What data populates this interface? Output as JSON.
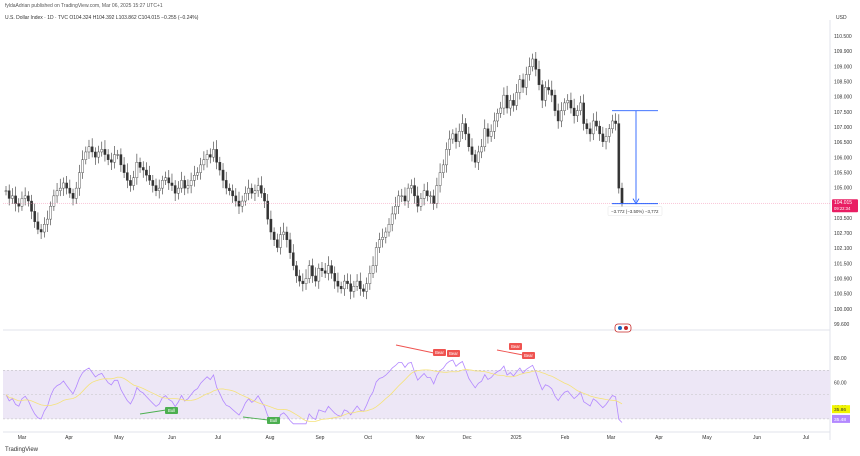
{
  "header": {
    "author_line": "fyldaAdrian published on TradingView.com, Mar 06, 2025 15:27 UTC+1",
    "symbol_line": "U.S. Dollar Index · 1D · TVC   O104.324  H104.392  L103.862  C104.015  −0.255 (−0.24%)",
    "currency": "USD"
  },
  "footer": {
    "brand": "TradingView"
  },
  "colors": {
    "up": "#ffffff",
    "down": "#333333",
    "wick": "#333333",
    "rsi_line": "#b388ff",
    "rsi_ma": "#f5e27a",
    "rsi_band": "#ede7f6",
    "bull": "#4caf50",
    "bear": "#ef5350",
    "measure": "#2962ff",
    "price_badge": "#e91e63",
    "rsi_badge": "#f1f500"
  },
  "chart_data": {
    "type": "candlestick",
    "main": {
      "y_ticks": [
        "110.500",
        "109.900",
        "109.000",
        "108.500",
        "108.000",
        "107.500",
        "107.000",
        "106.500",
        "106.000",
        "105.500",
        "105.000",
        "104.500",
        "103.500",
        "102.700",
        "102.100",
        "101.500",
        "100.900",
        "100.500",
        "100.000",
        "99.600"
      ],
      "last_price": "104.015",
      "countdown": "09:22:34",
      "measure_label": "−3.772 (−3.50%) −3,772",
      "ohlc_closes": [
        104.5,
        104.2,
        104.3,
        104.0,
        103.9,
        104.2,
        104.3,
        104.1,
        103.7,
        103.3,
        103.0,
        102.9,
        103.2,
        103.4,
        103.9,
        104.3,
        104.5,
        104.6,
        104.8,
        104.6,
        104.4,
        104.2,
        104.6,
        105.2,
        105.7,
        106.0,
        106.2,
        106.0,
        105.8,
        106.0,
        106.1,
        105.9,
        105.7,
        105.6,
        105.9,
        105.9,
        105.5,
        105.2,
        104.9,
        104.7,
        105.0,
        105.6,
        105.4,
        105.3,
        105.1,
        104.9,
        104.7,
        104.5,
        104.6,
        104.9,
        105.0,
        104.8,
        104.7,
        104.4,
        104.6,
        104.9,
        104.6,
        104.7,
        104.9,
        105.1,
        105.2,
        105.5,
        105.7,
        105.9,
        105.8,
        106.1,
        105.6,
        105.3,
        104.9,
        104.6,
        104.5,
        104.3,
        104.1,
        103.9,
        104.1,
        104.4,
        104.6,
        104.4,
        104.5,
        104.7,
        104.4,
        104.1,
        103.4,
        102.9,
        102.6,
        102.3,
        102.8,
        102.9,
        102.6,
        102.1,
        101.6,
        101.2,
        101.0,
        100.9,
        101.1,
        101.6,
        101.2,
        101.0,
        101.5,
        101.4,
        101.3,
        101.6,
        101.3,
        101.0,
        100.8,
        100.7,
        101.0,
        100.9,
        100.6,
        100.8,
        101.0,
        100.7,
        100.6,
        100.9,
        101.3,
        101.6,
        102.3,
        102.6,
        102.7,
        102.9,
        103.2,
        103.6,
        103.9,
        104.3,
        104.3,
        104.1,
        104.6,
        104.7,
        104.3,
        103.9,
        104.2,
        104.5,
        104.3,
        104.3,
        104.0,
        104.7,
        105.2,
        105.5,
        106.1,
        106.5,
        106.7,
        106.4,
        106.8,
        107.1,
        106.7,
        106.2,
        105.9,
        105.6,
        106.0,
        106.2,
        106.9,
        106.6,
        106.8,
        107.2,
        107.5,
        107.7,
        108.2,
        107.7,
        108.0,
        107.8,
        108.3,
        108.8,
        108.5,
        109.0,
        109.3,
        109.6,
        109.2,
        108.6,
        108.0,
        108.5,
        108.4,
        108.2,
        107.6,
        107.2,
        107.6,
        107.9,
        108.0,
        107.7,
        107.4,
        107.6,
        107.9,
        107.1,
        106.9,
        106.7,
        107.2,
        107.0,
        106.7,
        106.4,
        106.6,
        106.9,
        107.2,
        107.1,
        104.6,
        104.0
      ],
      "measure": {
        "from": 107.6,
        "to": 104.0
      }
    },
    "rsi": {
      "y_ticks": [
        "80.00",
        "60.00",
        "40.00"
      ],
      "value": "35.86",
      "ma_value": "35.48",
      "band": [
        30,
        70
      ],
      "labels": [
        {
          "text": "Bull",
          "type": "bull"
        },
        {
          "text": "Bull",
          "type": "bull"
        },
        {
          "text": "Bear",
          "type": "bear"
        },
        {
          "text": "Bear",
          "type": "bear"
        },
        {
          "text": "Bear",
          "type": "bear"
        },
        {
          "text": "Bear",
          "type": "bear"
        }
      ]
    },
    "x_labels": [
      "Mar",
      "Apr",
      "May",
      "Jun",
      "Jul",
      "Aug",
      "Sep",
      "Oct",
      "Nov",
      "Dec",
      "2025",
      "Feb",
      "Mar",
      "Apr",
      "May",
      "Jun",
      "Jul"
    ]
  }
}
